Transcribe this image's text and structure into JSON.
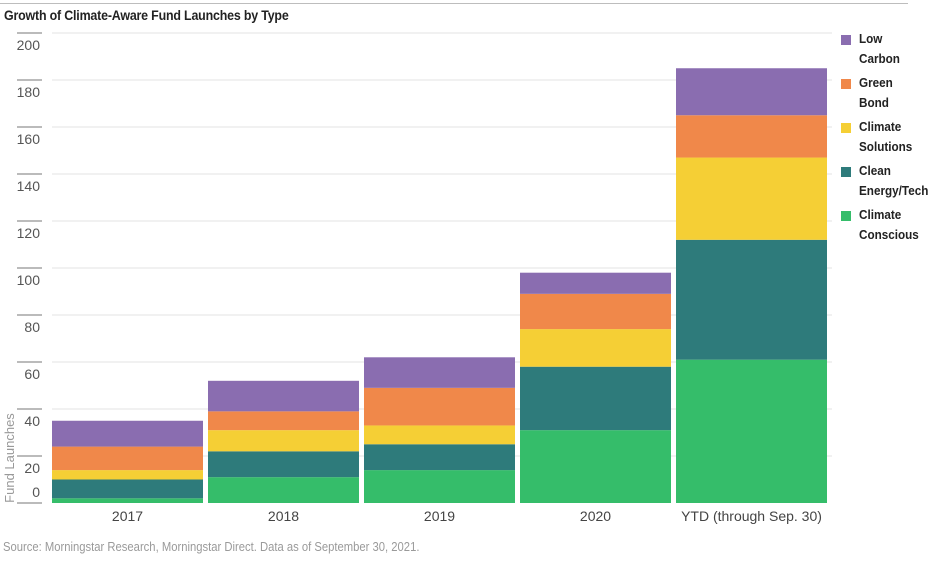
{
  "chart_data": {
    "type": "bar",
    "stacked": true,
    "title": "Growth of Climate-Aware Fund Launches by Type",
    "xlabel": "",
    "ylabel": "Fund Launches",
    "ylim": [
      0,
      200
    ],
    "yticks": [
      0,
      20,
      40,
      60,
      80,
      100,
      120,
      140,
      160,
      180,
      200
    ],
    "grid": true,
    "legend_position": "right",
    "categories": [
      "2017",
      "2018",
      "2019",
      "2020",
      "YTD (through Sep. 30)"
    ],
    "series": [
      {
        "name": "Climate Conscious",
        "label": "Climate\nConscious",
        "color": "#35bd6a",
        "values": [
          2,
          11,
          14,
          31,
          61
        ]
      },
      {
        "name": "Clean Energy/Tech",
        "label": "Clean\nEnergy/Tech",
        "color": "#2e7b7b",
        "values": [
          8,
          11,
          11,
          27,
          51
        ]
      },
      {
        "name": "Climate Solutions",
        "label": "Climate\nSolutions",
        "color": "#f5cf35",
        "values": [
          4,
          9,
          8,
          16,
          35
        ]
      },
      {
        "name": "Green Bond",
        "label": "Green\nBond",
        "color": "#f0884a",
        "values": [
          10,
          8,
          16,
          15,
          18
        ]
      },
      {
        "name": "Low Carbon",
        "label": "Low\nCarbon",
        "color": "#8a6db0",
        "values": [
          11,
          13,
          13,
          9,
          20
        ]
      }
    ],
    "legend_order": [
      "Low Carbon",
      "Green Bond",
      "Climate Solutions",
      "Clean Energy/Tech",
      "Climate Conscious"
    ],
    "source": "Source: Morningstar Research, Morningstar Direct. Data as of September 30, 2021."
  }
}
